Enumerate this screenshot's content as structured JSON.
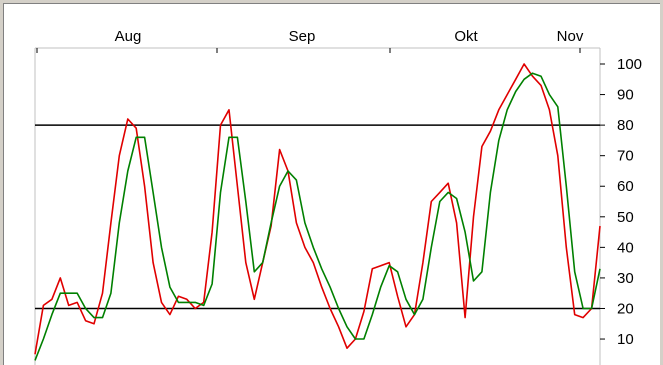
{
  "chart_data": {
    "type": "line",
    "x_tick_labels": [
      "Aug",
      "Sep",
      "Okt",
      "Nov"
    ],
    "y_tick_labels": [
      "100",
      "90",
      "80",
      "70",
      "60",
      "50",
      "40",
      "30",
      "20",
      "10"
    ],
    "ylim": [
      0,
      102
    ],
    "reference_lines": [
      80,
      20
    ],
    "grid": false,
    "colors": {
      "fast": "#e00000",
      "slow": "#008000",
      "reference": "#000000"
    },
    "series": [
      {
        "color": "red",
        "values": [
          5,
          21,
          23,
          30,
          21,
          22,
          16,
          15,
          25,
          48,
          70,
          82,
          79,
          60,
          35,
          22,
          18,
          24,
          23,
          20,
          22,
          45,
          80,
          85,
          60,
          35,
          23,
          35,
          47,
          72,
          65,
          48,
          40,
          35,
          27,
          20,
          14,
          7,
          10,
          19,
          33,
          34,
          35,
          24,
          14,
          18,
          35,
          55,
          58,
          61,
          48,
          17,
          50,
          73,
          78,
          85,
          90,
          95,
          100,
          96,
          93,
          85,
          70,
          40,
          18,
          17,
          20,
          47
        ]
      },
      {
        "color": "green",
        "values": [
          3,
          10,
          18,
          25,
          25,
          25,
          20,
          17,
          17,
          25,
          48,
          65,
          76,
          76,
          58,
          40,
          27,
          22,
          22,
          22,
          21,
          28,
          58,
          76,
          76,
          55,
          32,
          35,
          48,
          60,
          65,
          62,
          48,
          40,
          33,
          27,
          20,
          14,
          10,
          10,
          18,
          27,
          34,
          32,
          23,
          18,
          23,
          40,
          55,
          58,
          56,
          45,
          29,
          32,
          58,
          75,
          85,
          91,
          95,
          97,
          96,
          90,
          86,
          60,
          32,
          20,
          20,
          33
        ]
      }
    ]
  }
}
